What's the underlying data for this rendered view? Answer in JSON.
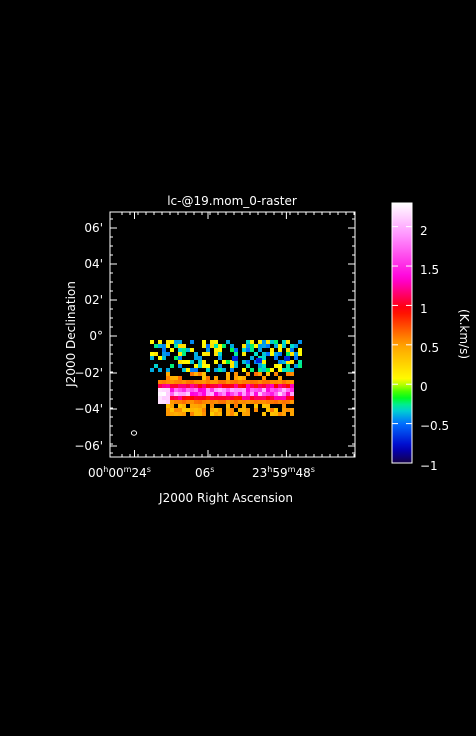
{
  "chart_data": {
    "type": "heatmap",
    "title": "lc-@19.mom_0-raster",
    "xlabel": "J2000 Right Ascension",
    "ylabel": "J2000 Declination",
    "colorbar_label": "(K.km/s)",
    "colorbar_ticks": [
      "2",
      "1.5",
      "1",
      "0.5",
      "0",
      "−0.5",
      "−1"
    ],
    "colorbar_range": [
      -1,
      2.3
    ],
    "x_ticks": [
      {
        "h": "00",
        "m": "00",
        "s": "24",
        "frac": 0.1
      },
      {
        "h": "",
        "m": "",
        "s": "06",
        "frac": 0.4
      },
      {
        "h": "23",
        "m": "59",
        "s": "48",
        "frac": 0.72
      }
    ],
    "y_ticks": [
      "06'",
      "04'",
      "02'",
      "0°",
      "−02'",
      "−04'",
      "−06'"
    ],
    "colors": {
      "background": "#000000",
      "axes": "#ffffff",
      "low": "#1a0060",
      "mid_low": "#00ff00",
      "mid": "#ffff00",
      "mid_high": "#ff0000",
      "high": "#ffffff"
    }
  }
}
